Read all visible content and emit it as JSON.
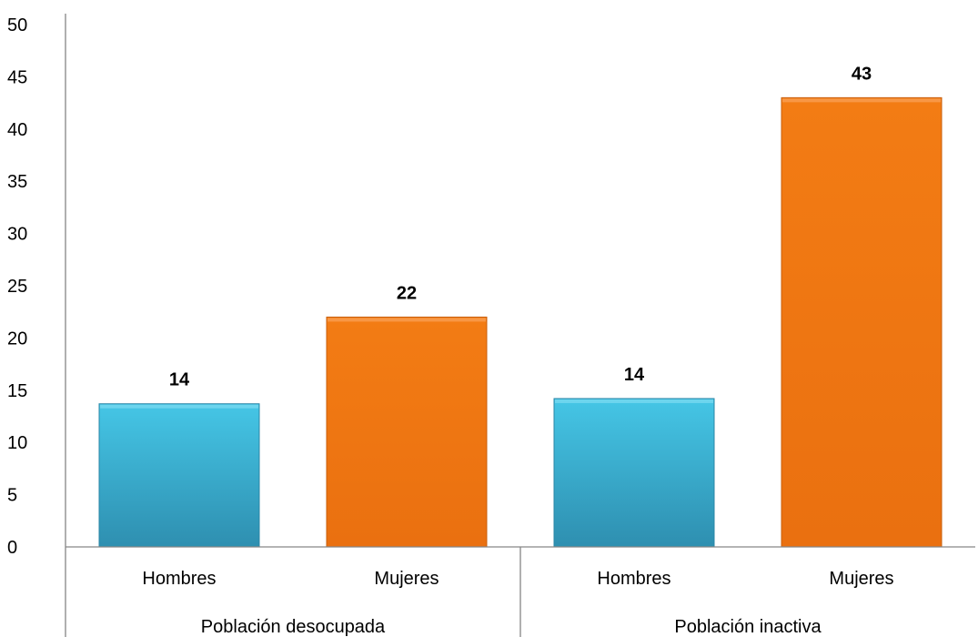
{
  "chart_data": {
    "type": "bar",
    "title": "",
    "xlabel": "",
    "ylabel": "",
    "ylim": [
      0,
      50
    ],
    "yticks": [
      0,
      5,
      10,
      15,
      20,
      25,
      30,
      35,
      40,
      45,
      50
    ],
    "grid": false,
    "legend": "none",
    "groups": [
      {
        "name": "Población desocupada",
        "bars": [
          {
            "category": "Hombres",
            "value": 13.7,
            "label": "14",
            "color": "#3db8d8"
          },
          {
            "category": "Mujeres",
            "value": 22,
            "label": "22",
            "color": "#f07712"
          }
        ]
      },
      {
        "name": "Población inactiva",
        "bars": [
          {
            "category": "Hombres",
            "value": 14.2,
            "label": "14",
            "color": "#3db8d8"
          },
          {
            "category": "Mujeres",
            "value": 43,
            "label": "43",
            "color": "#f07712"
          }
        ]
      }
    ]
  }
}
